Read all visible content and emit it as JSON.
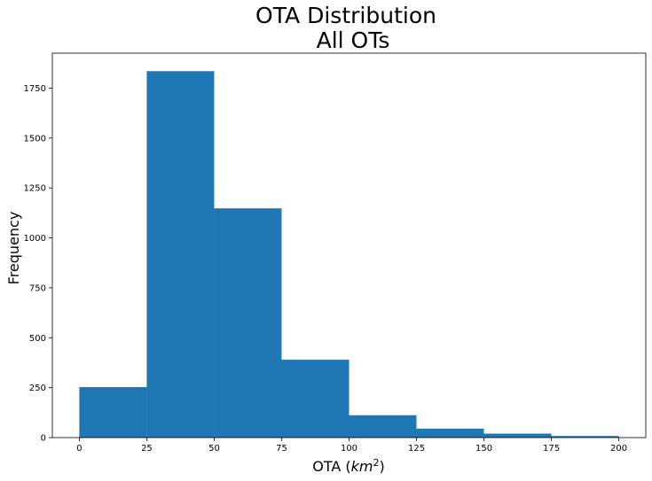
{
  "chart_data": {
    "type": "bar",
    "title": "OTA Distribution",
    "subtitle": "All OTs",
    "xlabel": "OTA (km²)",
    "xlabel_parts": {
      "text": "OTA (",
      "unit": "km",
      "exponent": "2",
      "close": ")"
    },
    "ylabel": "Frequency",
    "bins": [
      {
        "start": 0,
        "end": 25,
        "value": 253
      },
      {
        "start": 25,
        "end": 50,
        "value": 1835
      },
      {
        "start": 50,
        "end": 75,
        "value": 1148
      },
      {
        "start": 75,
        "end": 100,
        "value": 390
      },
      {
        "start": 100,
        "end": 125,
        "value": 112
      },
      {
        "start": 125,
        "end": 150,
        "value": 45
      },
      {
        "start": 150,
        "end": 175,
        "value": 20
      },
      {
        "start": 175,
        "end": 200,
        "value": 8
      }
    ],
    "xlim": [
      -10,
      210
    ],
    "ylim": [
      0,
      1925
    ],
    "xticks": [
      "0",
      "25",
      "50",
      "75",
      "100",
      "125",
      "150",
      "175",
      "200"
    ],
    "yticks": [
      "0",
      "250",
      "500",
      "750",
      "1000",
      "1250",
      "1500",
      "1750"
    ],
    "grid": false,
    "color": "#1f77b4"
  }
}
